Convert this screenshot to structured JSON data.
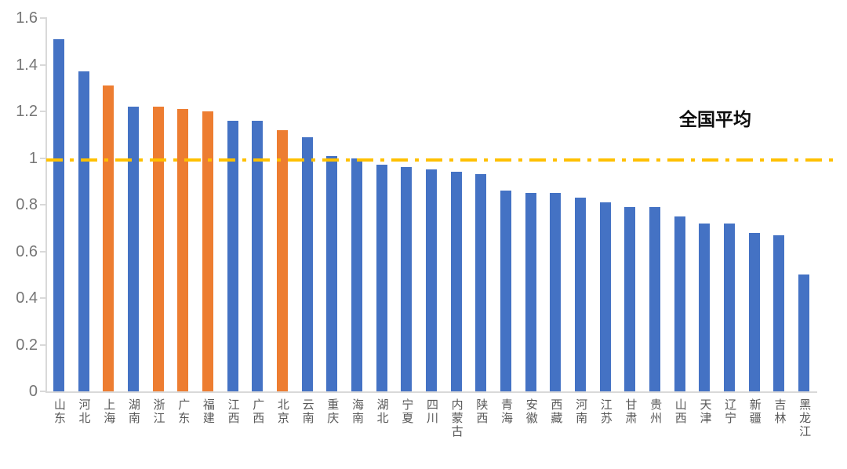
{
  "chart_data": {
    "type": "bar",
    "title": "",
    "xlabel": "",
    "ylabel": "",
    "categories": [
      "山东",
      "河北",
      "上海",
      "湖南",
      "浙江",
      "广东",
      "福建",
      "江西",
      "广西",
      "北京",
      "云南",
      "重庆",
      "海南",
      "湖北",
      "宁夏",
      "四川",
      "内蒙古",
      "陕西",
      "青海",
      "安徽",
      "西藏",
      "河南",
      "江苏",
      "甘肃",
      "贵州",
      "山西",
      "天津",
      "辽宁",
      "新疆",
      "吉林",
      "黑龙江"
    ],
    "values": [
      1.51,
      1.37,
      1.31,
      1.22,
      1.22,
      1.21,
      1.2,
      1.16,
      1.16,
      1.12,
      1.09,
      1.01,
      1.0,
      0.97,
      0.96,
      0.95,
      0.94,
      0.93,
      0.86,
      0.85,
      0.85,
      0.83,
      0.81,
      0.79,
      0.79,
      0.75,
      0.72,
      0.72,
      0.68,
      0.67,
      0.5
    ],
    "ylim": [
      0,
      1.6
    ],
    "yticks": [
      0,
      0.2,
      0.4,
      0.6,
      0.8,
      1,
      1.2,
      1.4,
      1.6
    ],
    "ytick_labels": [
      "0",
      "0.2",
      "0.4",
      "0.6",
      "0.8",
      "1",
      "1.2",
      "1.4",
      "1.6"
    ],
    "grid": false,
    "legend": false,
    "colors": {
      "bar_default": "#4472C4",
      "bar_highlight": "#ED7D31",
      "reference_line": "#FFC000",
      "axis": "#D9D9D9",
      "tick_text": "#767676",
      "category_text": "#595959"
    },
    "highlight_indices": [
      2,
      4,
      5,
      6,
      9
    ],
    "reference_line": {
      "value": 0.99,
      "label": "全国平均",
      "color": "#FFC000",
      "style": "dash-dot"
    }
  }
}
